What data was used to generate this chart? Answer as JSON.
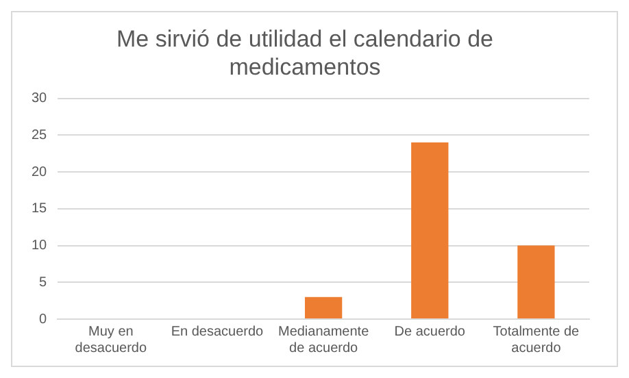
{
  "chart_data": {
    "type": "bar",
    "title": "Me sirvió de utilidad el calendario de medicamentos",
    "categories": [
      "Muy en desacuerdo",
      "En desacuerdo",
      "Medianamente de acuerdo",
      "De acuerdo",
      "Totalmente de acuerdo"
    ],
    "values": [
      0,
      0,
      3,
      24,
      10
    ],
    "color": "#ed7d31",
    "ylim": [
      0,
      30
    ],
    "yticks": [
      0,
      5,
      10,
      15,
      20,
      25,
      30
    ],
    "grid": "y"
  }
}
